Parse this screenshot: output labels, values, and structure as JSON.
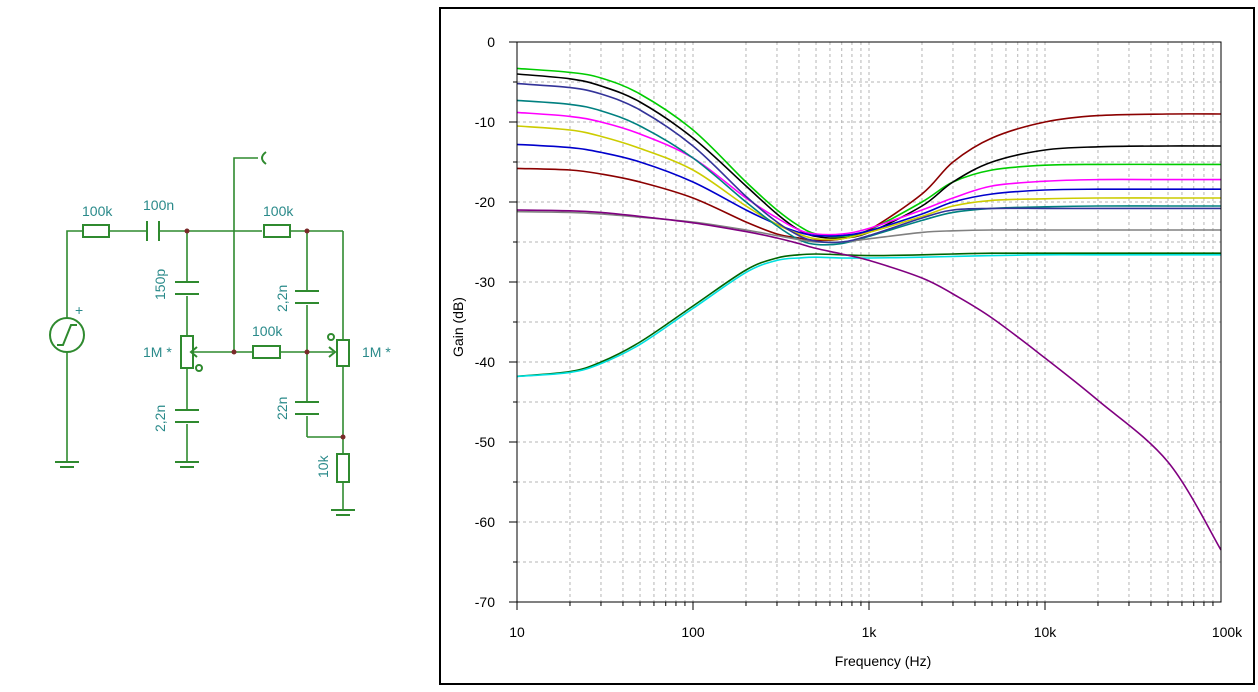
{
  "schematic": {
    "labels": {
      "r_in": "100k",
      "c_in": "100n",
      "r_top": "100k",
      "c_150p": "150p",
      "c_22n_top": "2,2n",
      "r_mid": "100k",
      "pot_left": "1M *",
      "pot_right": "1M *",
      "c_22n_bottom_left": "2,2n",
      "c_22n": "22n",
      "r_10k": "10k",
      "source_plus": "+"
    },
    "colors": {
      "wire": "#2f8a2f",
      "label": "#2a8a8a",
      "node": "#7a2a2a"
    }
  },
  "chart_data": {
    "type": "line",
    "xlabel": "Frequency (Hz)",
    "ylabel": "Gain (dB)",
    "xscale": "log",
    "xlim": [
      10,
      100000
    ],
    "ylim": [
      -70,
      0
    ],
    "x_ticks": [
      10,
      100,
      1000,
      10000,
      100000
    ],
    "x_tick_labels": [
      "10",
      "100",
      "1k",
      "10k",
      "100k"
    ],
    "y_ticks": [
      0,
      -10,
      -20,
      -30,
      -40,
      -50,
      -60,
      -70
    ],
    "y_tick_labels": [
      "0",
      "-10",
      "-20",
      "-30",
      "-40",
      "-50",
      "-60",
      "-70"
    ],
    "grid": true,
    "x": [
      10,
      20,
      30,
      50,
      100,
      200,
      300,
      400,
      500,
      700,
      1000,
      2000,
      3000,
      5000,
      10000,
      20000,
      50000,
      100000
    ],
    "series": [
      {
        "color": "#00cc00",
        "values": [
          -3.3,
          -3.8,
          -4.5,
          -6.5,
          -11,
          -17.5,
          -21,
          -23,
          -24,
          -24.3,
          -23.5,
          -20,
          -17.5,
          -16,
          -15.4,
          -15.3,
          -15.3,
          -15.3
        ]
      },
      {
        "color": "#8b0000",
        "values": [
          -15.8,
          -16,
          -16.5,
          -17.5,
          -19.5,
          -22.5,
          -24,
          -24.5,
          -24.8,
          -24.6,
          -23.5,
          -19,
          -15,
          -12,
          -10,
          -9.2,
          -9,
          -9
        ]
      },
      {
        "color": "#000000",
        "values": [
          -4,
          -4.6,
          -5.5,
          -7.5,
          -12,
          -18,
          -21.5,
          -23.5,
          -24.3,
          -24.5,
          -23.8,
          -20.5,
          -17.5,
          -15,
          -13.5,
          -13.1,
          -13,
          -13
        ]
      },
      {
        "color": "#ff00ff",
        "values": [
          -8.8,
          -9.3,
          -10,
          -11.5,
          -14.5,
          -19.5,
          -22,
          -23.5,
          -24,
          -24,
          -23.3,
          -21,
          -19.5,
          -18,
          -17.4,
          -17.2,
          -17.2,
          -17.2
        ]
      },
      {
        "color": "#0000cc",
        "values": [
          -12.8,
          -13.2,
          -13.8,
          -15,
          -17.5,
          -21,
          -22.8,
          -23.8,
          -24.2,
          -24.2,
          -23.6,
          -21.5,
          -20,
          -19,
          -18.5,
          -18.4,
          -18.4,
          -18.4
        ]
      },
      {
        "color": "#cccc00",
        "values": [
          -10.5,
          -11,
          -11.8,
          -13.3,
          -16,
          -20.5,
          -22.8,
          -24,
          -24.6,
          -24.6,
          -23.8,
          -21.8,
          -20.5,
          -19.8,
          -19.6,
          -19.5,
          -19.5,
          -19.5
        ]
      },
      {
        "color": "#008080",
        "values": [
          -7.3,
          -7.8,
          -8.6,
          -10.5,
          -14.5,
          -20,
          -23,
          -24.7,
          -25.3,
          -25.2,
          -24.3,
          -22.3,
          -21.3,
          -20.8,
          -20.6,
          -20.5,
          -20.5,
          -20.5
        ]
      },
      {
        "color": "#808080",
        "values": [
          -21.2,
          -21.3,
          -21.5,
          -21.9,
          -22.5,
          -23.5,
          -24.2,
          -24.7,
          -25,
          -25,
          -24.6,
          -23.8,
          -23.6,
          -23.5,
          -23.5,
          -23.5,
          -23.5,
          -23.5
        ]
      },
      {
        "color": "#006400",
        "values": [
          -41.8,
          -41.2,
          -40,
          -37.5,
          -33,
          -28.5,
          -27,
          -26.6,
          -26.5,
          -26.6,
          -26.7,
          -26.6,
          -26.5,
          -26.4,
          -26.4,
          -26.4,
          -26.4,
          -26.4
        ]
      },
      {
        "color": "#00e0e0",
        "values": [
          -41.8,
          -41.3,
          -40.2,
          -37.8,
          -33.3,
          -28.8,
          -27.3,
          -27,
          -26.9,
          -27,
          -27,
          -26.9,
          -26.8,
          -26.7,
          -26.6,
          -26.6,
          -26.6,
          -26.6
        ]
      },
      {
        "color": "#800080",
        "values": [
          -21,
          -21.1,
          -21.3,
          -21.8,
          -22.6,
          -23.7,
          -24.5,
          -25.2,
          -25.8,
          -26.5,
          -27.3,
          -29.5,
          -31.5,
          -34.5,
          -39.5,
          -44.8,
          -52.5,
          -63.5
        ]
      },
      {
        "color": "#333399",
        "values": [
          -5.2,
          -5.7,
          -6.5,
          -8.5,
          -13,
          -19.3,
          -22.5,
          -24.2,
          -24.9,
          -25,
          -24.2,
          -22,
          -21,
          -20.8,
          -20.8,
          -20.8,
          -20.8,
          -20.8
        ]
      }
    ]
  }
}
